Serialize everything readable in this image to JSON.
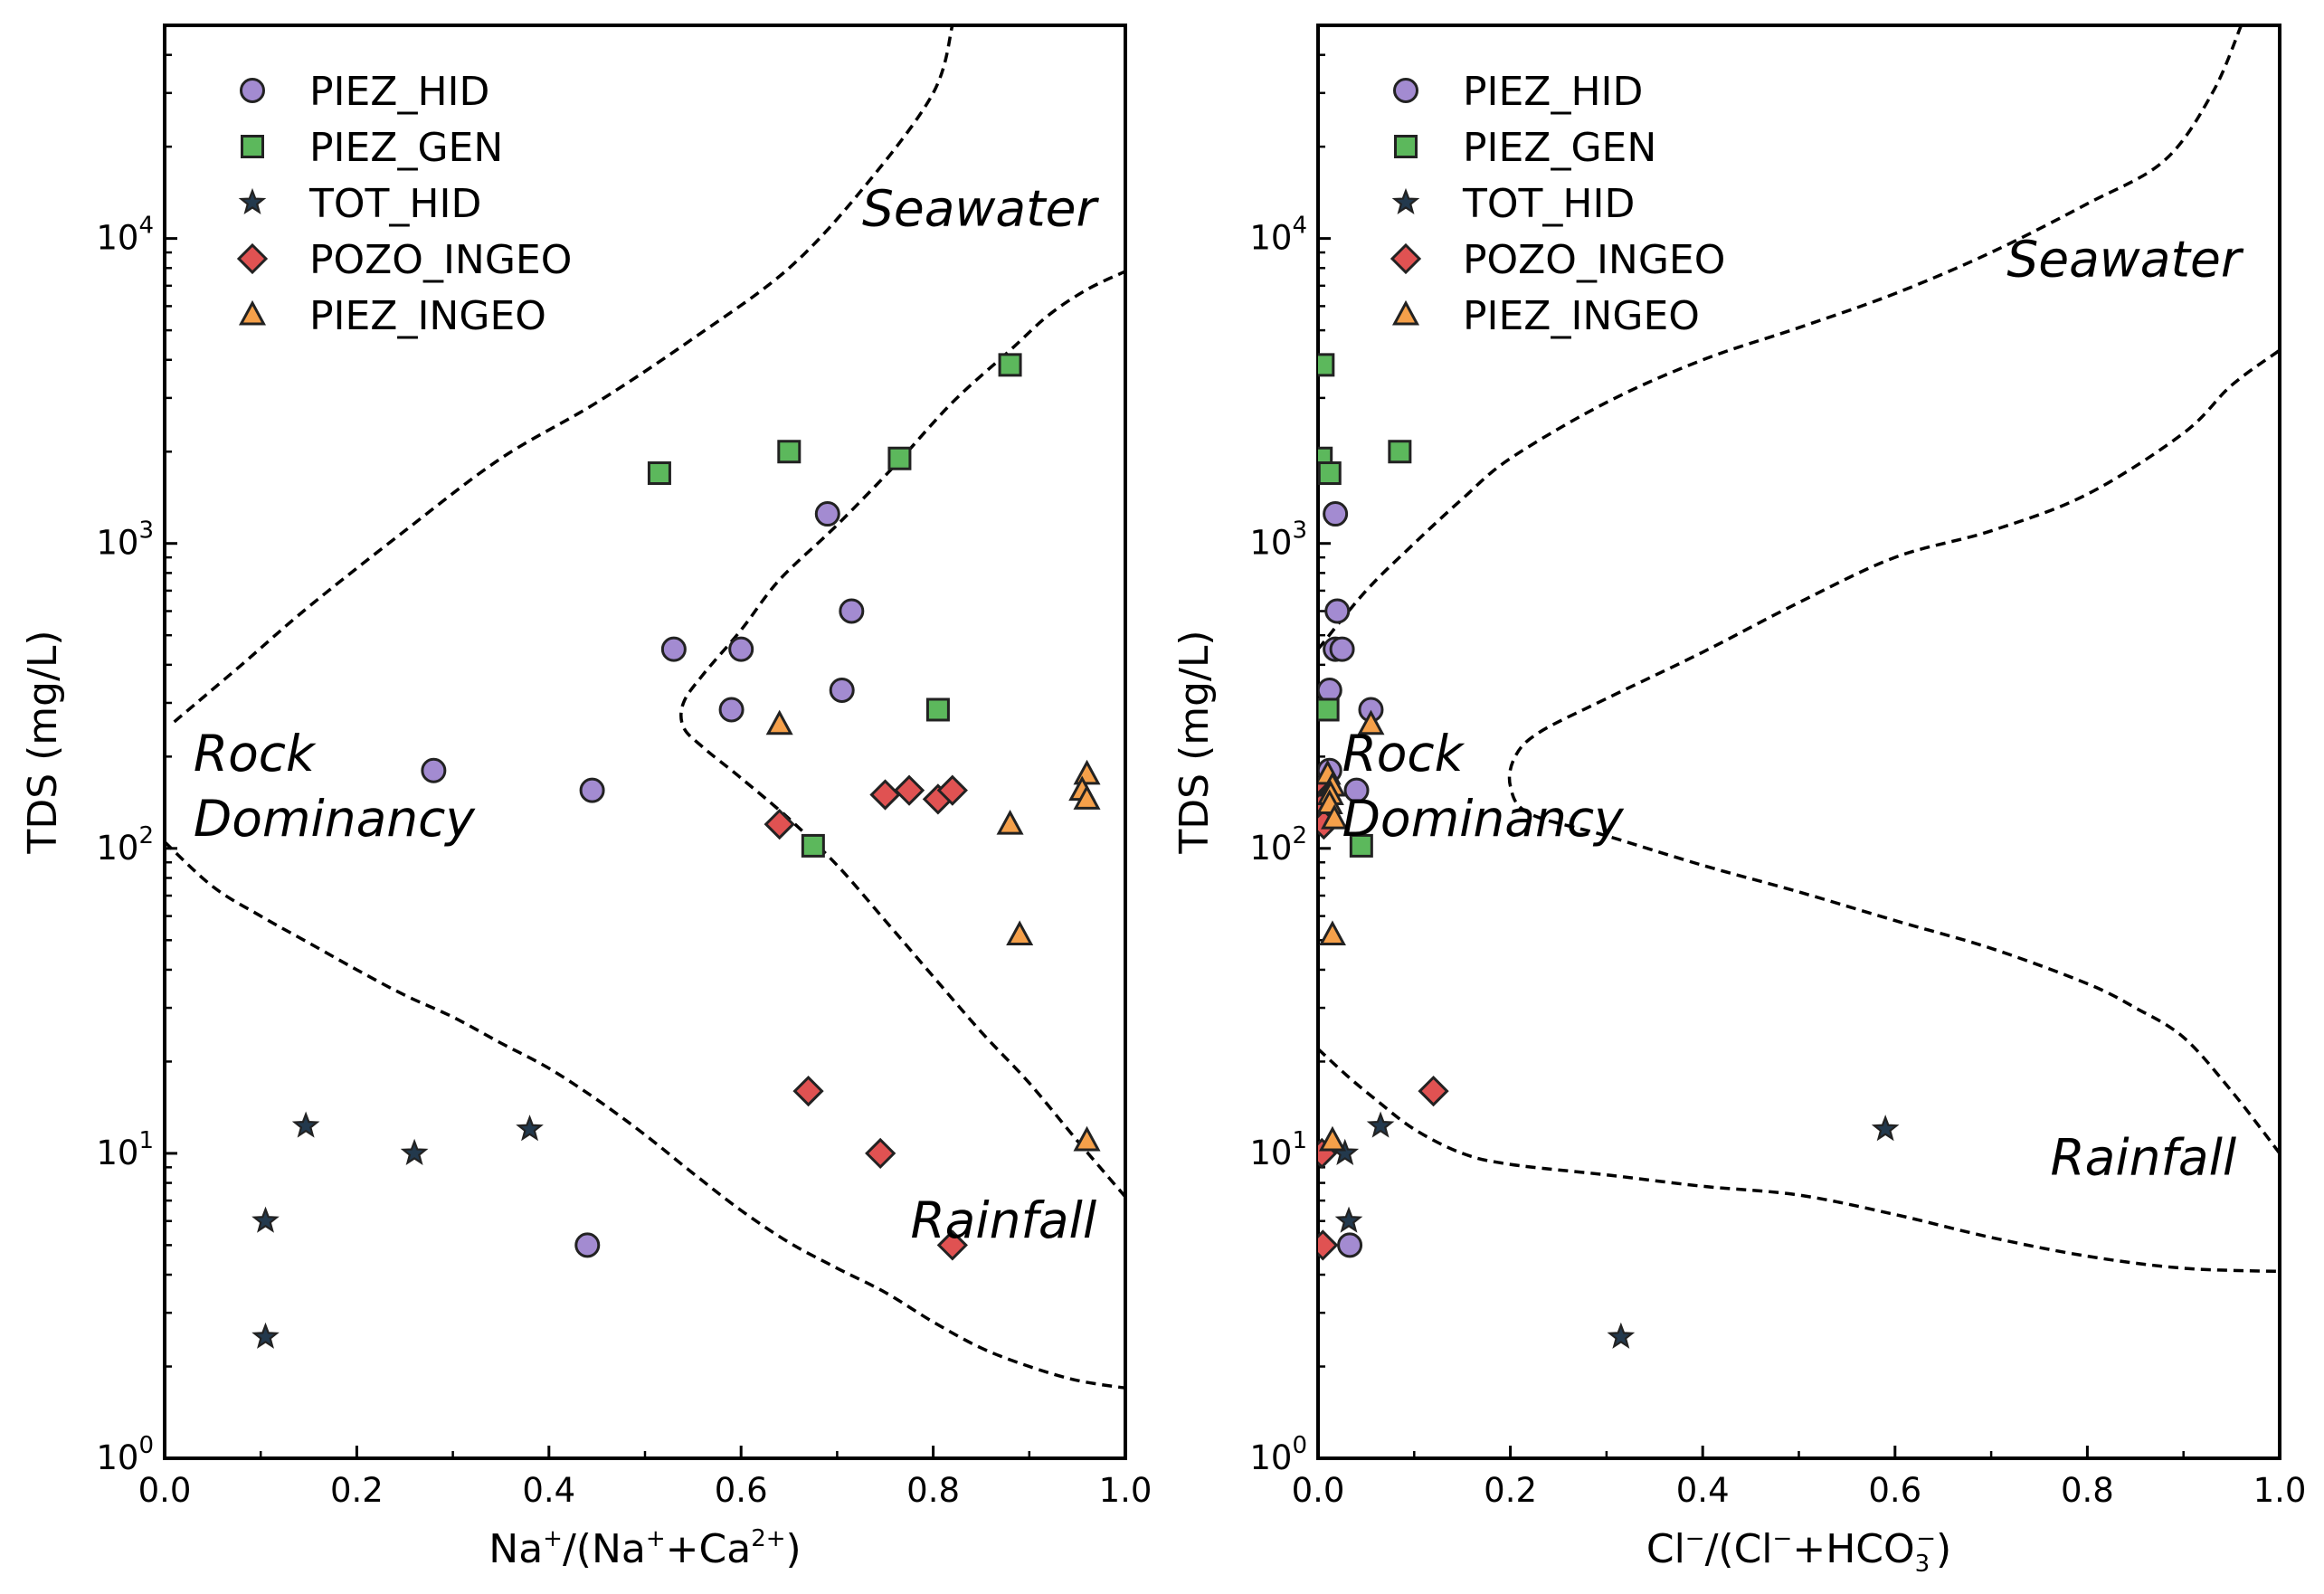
{
  "chart_data": [
    {
      "type": "scatter",
      "panel": "left",
      "xlabel_parts": [
        "Na",
        "+",
        "/(Na",
        "+",
        "+Ca",
        "2+",
        ")"
      ],
      "ylabel": "TDS (mg/L)",
      "xlim": [
        0,
        1
      ],
      "ylim": [
        1,
        50000
      ],
      "yscale": "log",
      "x_ticks": [
        "0.0",
        "0.2",
        "0.4",
        "0.6",
        "0.8",
        "1.0"
      ],
      "y_ticks": [
        {
          "base": "10",
          "exp": "0",
          "value": 1
        },
        {
          "base": "10",
          "exp": "1",
          "value": 10
        },
        {
          "base": "10",
          "exp": "2",
          "value": 100
        },
        {
          "base": "10",
          "exp": "3",
          "value": 1000
        },
        {
          "base": "10",
          "exp": "4",
          "value": 10000
        }
      ],
      "legend_position": "upper-left",
      "region_labels": [
        {
          "text": "Seawater",
          "anchor": [
            0.97,
            11000
          ],
          "align": "end"
        },
        {
          "text": "Rock",
          "anchor": [
            0.03,
            180
          ],
          "align": "start"
        },
        {
          "text": "Dominancy",
          "anchor": [
            0.03,
            110
          ],
          "align": "start"
        },
        {
          "text": "Rainfall",
          "anchor": [
            0.97,
            5.3
          ],
          "align": "end"
        }
      ],
      "boundaries": [
        [
          [
            0.01,
            260
          ],
          [
            0.08,
            400
          ],
          [
            0.15,
            620
          ],
          [
            0.25,
            1100
          ],
          [
            0.35,
            1900
          ],
          [
            0.45,
            2900
          ],
          [
            0.55,
            4700
          ],
          [
            0.65,
            8000
          ],
          [
            0.73,
            15000
          ],
          [
            0.8,
            30000
          ],
          [
            0.82,
            50000
          ]
        ],
        [
          [
            0.0,
            105
          ],
          [
            0.05,
            75
          ],
          [
            0.1,
            60
          ],
          [
            0.15,
            49
          ],
          [
            0.2,
            40
          ],
          [
            0.25,
            33
          ],
          [
            0.3,
            28
          ],
          [
            0.35,
            23
          ],
          [
            0.4,
            19
          ],
          [
            0.45,
            15
          ],
          [
            0.5,
            11.5
          ],
          [
            0.55,
            8.6
          ],
          [
            0.6,
            6.5
          ],
          [
            0.65,
            5.1
          ],
          [
            0.7,
            4.2
          ],
          [
            0.75,
            3.5
          ],
          [
            0.8,
            2.8
          ],
          [
            0.85,
            2.3
          ],
          [
            0.9,
            2.0
          ],
          [
            0.95,
            1.8
          ],
          [
            1.0,
            1.7
          ]
        ],
        [
          [
            1.0,
            7.2
          ],
          [
            0.95,
            11
          ],
          [
            0.9,
            17
          ],
          [
            0.85,
            25
          ],
          [
            0.8,
            38
          ],
          [
            0.75,
            58
          ],
          [
            0.7,
            88
          ],
          [
            0.65,
            125
          ],
          [
            0.6,
            170
          ],
          [
            0.56,
            215
          ],
          [
            0.54,
            250
          ],
          [
            0.54,
            300
          ],
          [
            0.56,
            370
          ],
          [
            0.6,
            520
          ],
          [
            0.64,
            760
          ],
          [
            0.7,
            1150
          ],
          [
            0.76,
            1800
          ],
          [
            0.82,
            2900
          ],
          [
            0.88,
            4300
          ],
          [
            0.92,
            5600
          ],
          [
            0.96,
            6800
          ],
          [
            1.0,
            7800
          ]
        ]
      ],
      "series": [
        {
          "name": "PIEZ_HID",
          "marker": "circle",
          "color": "#a38bd1",
          "points": [
            [
              0.28,
              180
            ],
            [
              0.445,
              155
            ],
            [
              0.53,
              450
            ],
            [
              0.6,
              450
            ],
            [
              0.69,
              1250
            ],
            [
              0.715,
              600
            ],
            [
              0.59,
              285
            ],
            [
              0.705,
              330
            ],
            [
              0.44,
              5
            ]
          ]
        },
        {
          "name": "PIEZ_GEN",
          "marker": "square",
          "color": "#5cb85c",
          "points": [
            [
              0.515,
              1700
            ],
            [
              0.65,
              2000
            ],
            [
              0.765,
              1900
            ],
            [
              0.88,
              3850
            ],
            [
              0.805,
              285
            ],
            [
              0.675,
              102
            ]
          ]
        },
        {
          "name": "TOT_HID",
          "marker": "star",
          "color": "#23394d",
          "points": [
            [
              0.147,
              12.3
            ],
            [
              0.26,
              10
            ],
            [
              0.38,
              12
            ],
            [
              0.105,
              6
            ],
            [
              0.105,
              2.5
            ]
          ]
        },
        {
          "name": "POZO_INGEO",
          "marker": "diamond",
          "color": "#e05252",
          "points": [
            [
              0.64,
              120
            ],
            [
              0.75,
              150
            ],
            [
              0.775,
              155
            ],
            [
              0.805,
              145
            ],
            [
              0.82,
              155
            ],
            [
              0.67,
              16
            ],
            [
              0.745,
              10
            ],
            [
              0.82,
              5
            ]
          ]
        },
        {
          "name": "PIEZ_INGEO",
          "marker": "triangle",
          "color": "#f5a04a",
          "points": [
            [
              0.64,
              255
            ],
            [
              0.96,
              175
            ],
            [
              0.955,
              155
            ],
            [
              0.96,
              145
            ],
            [
              0.88,
              120
            ],
            [
              0.89,
              52
            ],
            [
              0.96,
              11
            ]
          ]
        }
      ]
    },
    {
      "type": "scatter",
      "panel": "right",
      "xlabel_parts": [
        "Cl",
        "−",
        "/(Cl",
        "−",
        "+HCO",
        "3",
        "−",
        ")"
      ],
      "ylabel": "TDS (mg/L)",
      "xlim": [
        0,
        1
      ],
      "ylim": [
        1,
        50000
      ],
      "yscale": "log",
      "x_ticks": [
        "0.0",
        "0.2",
        "0.4",
        "0.6",
        "0.8",
        "1.0"
      ],
      "y_ticks": [
        {
          "base": "10",
          "exp": "0",
          "value": 1
        },
        {
          "base": "10",
          "exp": "1",
          "value": 10
        },
        {
          "base": "10",
          "exp": "2",
          "value": 100
        },
        {
          "base": "10",
          "exp": "3",
          "value": 1000
        },
        {
          "base": "10",
          "exp": "4",
          "value": 10000
        }
      ],
      "legend_position": "upper-left",
      "region_labels": [
        {
          "text": "Seawater",
          "anchor": [
            0.96,
            7500
          ],
          "align": "end"
        },
        {
          "text": "Rock",
          "anchor": [
            0.025,
            180
          ],
          "align": "start"
        },
        {
          "text": "Dominancy",
          "anchor": [
            0.025,
            110
          ],
          "align": "start"
        },
        {
          "text": "Rainfall",
          "anchor": [
            0.955,
            8.5
          ],
          "align": "end"
        }
      ],
      "boundaries": [
        [
          [
            0.0,
            450
          ],
          [
            0.05,
            700
          ],
          [
            0.1,
            1000
          ],
          [
            0.15,
            1400
          ],
          [
            0.2,
            1900
          ],
          [
            0.3,
            2900
          ],
          [
            0.4,
            4000
          ],
          [
            0.5,
            5100
          ],
          [
            0.6,
            6600
          ],
          [
            0.7,
            9000
          ],
          [
            0.8,
            13000
          ],
          [
            0.88,
            18000
          ],
          [
            0.93,
            30000
          ],
          [
            0.96,
            50000
          ]
        ],
        [
          [
            0.0,
            22
          ],
          [
            0.03,
            18
          ],
          [
            0.06,
            15
          ],
          [
            0.1,
            12
          ],
          [
            0.15,
            10
          ],
          [
            0.2,
            9.2
          ],
          [
            0.3,
            8.5
          ],
          [
            0.4,
            7.8
          ],
          [
            0.5,
            7.3
          ],
          [
            0.6,
            6.3
          ],
          [
            0.7,
            5.3
          ],
          [
            0.8,
            4.6
          ],
          [
            0.9,
            4.2
          ],
          [
            1.0,
            4.1
          ]
        ],
        [
          [
            1.0,
            10
          ],
          [
            0.95,
            16
          ],
          [
            0.9,
            24
          ],
          [
            0.85,
            30
          ],
          [
            0.8,
            36
          ],
          [
            0.7,
            47
          ],
          [
            0.6,
            58
          ],
          [
            0.5,
            72
          ],
          [
            0.4,
            88
          ],
          [
            0.3,
            110
          ],
          [
            0.22,
            130
          ],
          [
            0.2,
            160
          ],
          [
            0.205,
            200
          ],
          [
            0.23,
            240
          ],
          [
            0.3,
            310
          ],
          [
            0.4,
            440
          ],
          [
            0.5,
            640
          ],
          [
            0.6,
            900
          ],
          [
            0.7,
            1100
          ],
          [
            0.8,
            1450
          ],
          [
            0.9,
            2300
          ],
          [
            0.95,
            3300
          ],
          [
            1.0,
            4300
          ]
        ]
      ],
      "series": [
        {
          "name": "PIEZ_HID",
          "marker": "circle",
          "color": "#a38bd1",
          "points": [
            [
              0.018,
              1250
            ],
            [
              0.02,
              600
            ],
            [
              0.018,
              450
            ],
            [
              0.025,
              450
            ],
            [
              0.012,
              330
            ],
            [
              0.055,
              285
            ],
            [
              0.012,
              180
            ],
            [
              0.04,
              155
            ],
            [
              0.033,
              5
            ]
          ]
        },
        {
          "name": "PIEZ_GEN",
          "marker": "square",
          "color": "#5cb85c",
          "points": [
            [
              0.005,
              3850
            ],
            [
              0.003,
              1900
            ],
            [
              0.012,
              1700
            ],
            [
              0.085,
              2000
            ],
            [
              0.01,
              285
            ],
            [
              0.045,
              102
            ]
          ]
        },
        {
          "name": "TOT_HID",
          "marker": "star",
          "color": "#23394d",
          "points": [
            [
              0.065,
              12.3
            ],
            [
              0.028,
              10
            ],
            [
              0.032,
              6
            ],
            [
              0.315,
              2.5
            ],
            [
              0.59,
              12
            ]
          ]
        },
        {
          "name": "POZO_INGEO",
          "marker": "diamond",
          "color": "#e05252",
          "points": [
            [
              0.005,
              155
            ],
            [
              0.008,
              145
            ],
            [
              0.006,
              140
            ],
            [
              0.008,
              125
            ],
            [
              0.006,
              120
            ],
            [
              0.004,
              10
            ],
            [
              0.005,
              5
            ],
            [
              0.12,
              16
            ]
          ]
        },
        {
          "name": "PIEZ_INGEO",
          "marker": "triangle",
          "color": "#f5a04a",
          "points": [
            [
              0.055,
              255
            ],
            [
              0.01,
              175
            ],
            [
              0.015,
              160
            ],
            [
              0.013,
              150
            ],
            [
              0.012,
              140
            ],
            [
              0.017,
              125
            ],
            [
              0.015,
              52
            ],
            [
              0.015,
              11
            ]
          ]
        }
      ]
    }
  ]
}
